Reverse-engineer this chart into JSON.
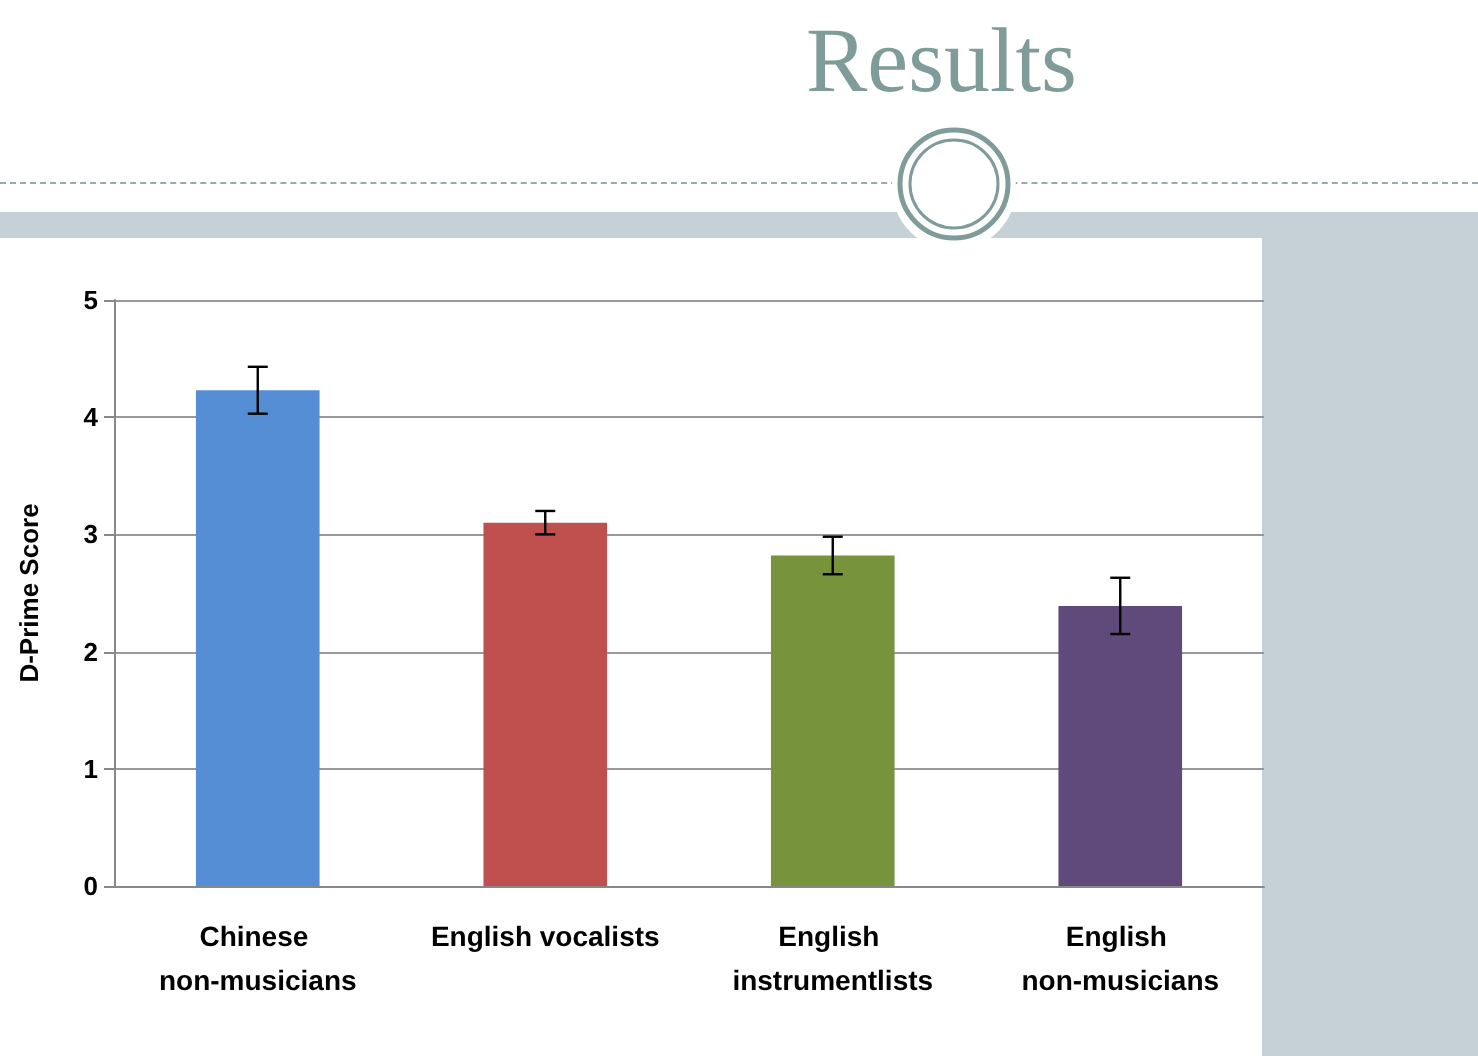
{
  "chart_data": {
    "type": "bar",
    "title": "Results",
    "ylabel": "D-Prime Score",
    "categories": [
      "Chinese non-musicians",
      "English vocalists",
      "English instrumentlists",
      "English non-musicians"
    ],
    "values": [
      4.23,
      3.1,
      2.82,
      2.39
    ],
    "colors": [
      "#558ed5",
      "#c0504d",
      "#77933c",
      "#604a7b"
    ],
    "errors": [
      0.2,
      0.1,
      0.16,
      0.24
    ],
    "ylim": [
      0,
      5
    ],
    "yticks": [
      0,
      1,
      2,
      3,
      4,
      5
    ],
    "grid": "y"
  }
}
